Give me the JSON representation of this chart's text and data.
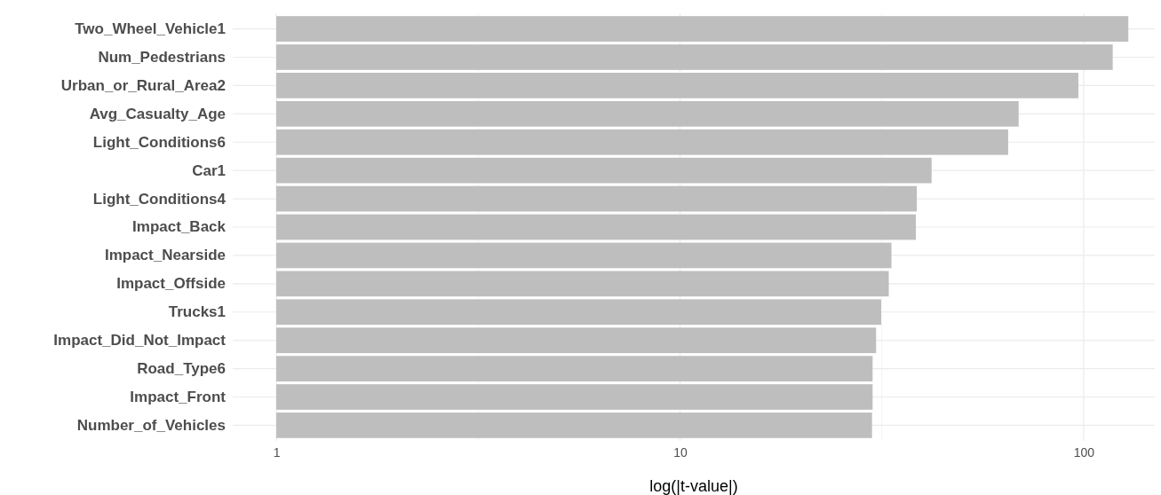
{
  "chart_data": {
    "type": "bar",
    "orientation": "horizontal",
    "xlabel": "log(|t-value|)",
    "categories": [
      "Two_Wheel_Vehicle1",
      "Num_Pedestrians",
      "Urban_or_Rural_Area2",
      "Avg_Casualty_Age",
      "Light_Conditions6",
      "Car1",
      "Light_Conditions4",
      "Impact_Back",
      "Impact_Nearside",
      "Impact_Offside",
      "Trucks1",
      "Impact_Did_Not_Impact",
      "Road_Type6",
      "Impact_Front",
      "Number_of_Vehicles"
    ],
    "values": [
      128,
      117,
      96,
      68,
      64,
      41,
      37.6,
      37.4,
      32.4,
      31.9,
      30.5,
      29.6,
      29.0,
      29.0,
      28.9
    ],
    "color": "#bebebe",
    "base": [
      1,
      1,
      1,
      1,
      1,
      1,
      1,
      1,
      1,
      1,
      1,
      1,
      1,
      1,
      1
    ],
    "log": "x",
    "xlim": [
      0.78,
      150
    ],
    "xticks": [
      1,
      {
        "value": 3.162,
        "label": null
      },
      10,
      {
        "value": 31.62,
        "label": null
      },
      100
    ],
    "grid": true
  }
}
